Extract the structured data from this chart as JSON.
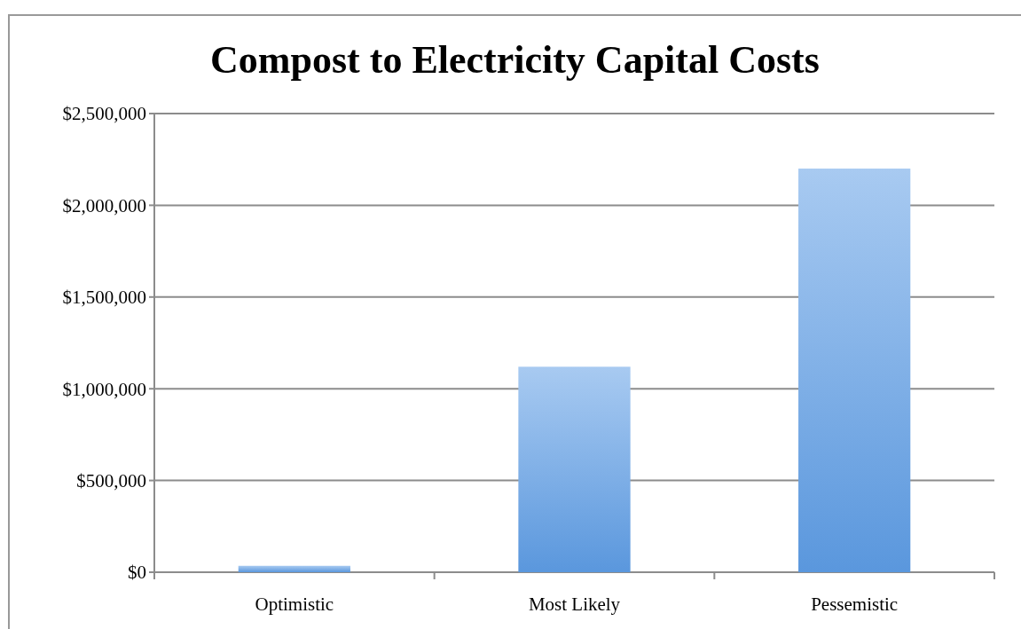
{
  "chart_data": {
    "type": "bar",
    "title": "Compost to Electricity Capital Costs",
    "categories": [
      "Optimistic",
      "Most Likely",
      "Pessemistic"
    ],
    "values": [
      35000,
      1120000,
      2200000
    ],
    "color": "#79aeea",
    "ylim": [
      0,
      2500000
    ],
    "yticks": [
      {
        "value": 0,
        "label": "$0"
      },
      {
        "value": 500000,
        "label": "$500,000"
      },
      {
        "value": 1000000,
        "label": "$1,000,000"
      },
      {
        "value": 1500000,
        "label": "$1,500,000"
      },
      {
        "value": 2000000,
        "label": "$2,000,000"
      },
      {
        "value": 2500000,
        "label": "$2,500,000"
      }
    ],
    "grid": "y"
  }
}
